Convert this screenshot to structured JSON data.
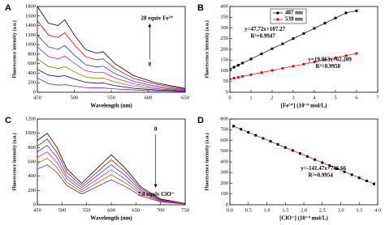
{
  "chart_data": [
    {
      "type": "line",
      "panel_label": "A",
      "x_label": "Wavelength (nm)",
      "y_label": "Fluorescence intensity (a.u.)",
      "x": [
        450,
        465,
        478,
        487,
        500,
        515,
        530,
        539,
        555,
        580,
        610,
        650
      ],
      "series": [
        {
          "color": "#000000",
          "values": [
            1800,
            1450,
            1400,
            1520,
            1200,
            900,
            820,
            850,
            600,
            350,
            200,
            80
          ]
        },
        {
          "color": "#e00000",
          "values": [
            1500,
            1200,
            1150,
            1250,
            1000,
            750,
            680,
            700,
            500,
            290,
            170,
            70
          ]
        },
        {
          "color": "#1f3fd0",
          "values": [
            1200,
            950,
            900,
            980,
            780,
            580,
            530,
            550,
            390,
            230,
            130,
            55
          ]
        },
        {
          "color": "#d020c0",
          "values": [
            950,
            750,
            700,
            760,
            610,
            450,
            410,
            420,
            300,
            180,
            100,
            45
          ]
        },
        {
          "color": "#808000",
          "values": [
            700,
            540,
            500,
            540,
            430,
            320,
            290,
            300,
            215,
            130,
            75,
            35
          ]
        },
        {
          "color": "#000080",
          "values": [
            480,
            360,
            330,
            350,
            280,
            210,
            190,
            195,
            140,
            85,
            50,
            25
          ]
        },
        {
          "color": "#7a1fa0",
          "values": [
            300,
            180,
            150,
            160,
            130,
            100,
            90,
            90,
            70,
            50,
            30,
            10
          ]
        }
      ],
      "xlim": [
        450,
        650
      ],
      "xticks": [
        450,
        500,
        550,
        600,
        650
      ],
      "ylim": [
        0,
        1800
      ],
      "yticks": [
        0,
        200,
        400,
        600,
        800,
        1000,
        1200,
        1400,
        1600,
        1800
      ],
      "annotations": [
        "28 equiv Fe³⁺",
        "0"
      ]
    },
    {
      "type": "scatter",
      "panel_label": "B",
      "x_label": "[Fe³⁺] (10⁻⁴ mol/L)",
      "y_label": "Fluorescence intensity (a.u.)",
      "series": [
        {
          "name": "487 nm",
          "color": "#000000",
          "line_color": "#000000",
          "marker": "square",
          "x": [
            0,
            0.2,
            0.4,
            0.6,
            1,
            1.5,
            2,
            2.5,
            3,
            3.5,
            4,
            4.5,
            5,
            5.5,
            6
          ],
          "values": [
            107,
            117,
            126,
            136,
            155,
            179,
            203,
            226,
            250,
            274,
            298,
            322,
            346,
            370,
            380
          ]
        },
        {
          "name": "539 nm",
          "color": "#e00000",
          "line_color": "#e00000",
          "marker": "circle",
          "x": [
            0,
            0.2,
            0.4,
            0.6,
            1,
            1.5,
            2,
            2.5,
            3,
            3.5,
            4,
            4.5,
            5,
            5.5,
            6
          ],
          "values": [
            62,
            66,
            70,
            74,
            82,
            92,
            102,
            112,
            122,
            131,
            141,
            151,
            161,
            171,
            181
          ]
        }
      ],
      "xlim": [
        0,
        7
      ],
      "xticks": [
        0,
        1,
        2,
        3,
        4,
        5,
        6,
        7
      ],
      "ylim": [
        0,
        400
      ],
      "yticks": [
        0,
        50,
        100,
        150,
        200,
        250,
        300,
        350,
        400
      ],
      "legend": "upper left",
      "annotations": [
        "y=47.72x+107.27",
        "R²=0.9947",
        "y=19.813x+62.209",
        "R²=0.9958"
      ]
    },
    {
      "type": "line",
      "panel_label": "C",
      "x_label": "Wavelength (nm)",
      "y_label": "Fluorescence intensity (a.u.)",
      "x": [
        450,
        470,
        490,
        510,
        540,
        570,
        600,
        630,
        660,
        700,
        750
      ],
      "series": [
        {
          "color": "#000000",
          "values": [
            900,
            1000,
            800,
            500,
            300,
            500,
            700,
            500,
            250,
            80,
            20
          ]
        },
        {
          "color": "#e00000",
          "values": [
            820,
            920,
            730,
            450,
            270,
            450,
            630,
            450,
            225,
            70,
            18
          ]
        },
        {
          "color": "#1f3fd0",
          "values": [
            740,
            830,
            660,
            400,
            240,
            400,
            560,
            400,
            200,
            62,
            16
          ]
        },
        {
          "color": "#d020c0",
          "values": [
            660,
            740,
            590,
            360,
            210,
            350,
            490,
            350,
            175,
            55,
            14
          ]
        },
        {
          "color": "#808000",
          "values": [
            580,
            650,
            520,
            310,
            180,
            300,
            420,
            300,
            150,
            47,
            12
          ]
        },
        {
          "color": "#7a1fa0",
          "values": [
            500,
            560,
            450,
            270,
            150,
            250,
            350,
            250,
            125,
            40,
            10
          ]
        }
      ],
      "xlim": [
        450,
        750
      ],
      "xticks": [
        450,
        500,
        550,
        600,
        650,
        700,
        750
      ],
      "ylim": [
        0,
        1200
      ],
      "yticks": [
        0,
        200,
        400,
        600,
        800,
        1000,
        1200
      ],
      "annotations": [
        "0",
        "7.0 equiv ClO⁻"
      ]
    },
    {
      "type": "scatter",
      "panel_label": "D",
      "x_label": "[ClO⁻] (10⁻⁴ mol/L)",
      "y_label": "Fluorescence intensity (a.u.)",
      "series": [
        {
          "color": "#000000",
          "line_color": "#e00000",
          "marker": "square",
          "x": [
            0.1,
            0.3,
            0.5,
            0.7,
            0.9,
            1.1,
            1.3,
            1.5,
            1.7,
            1.9,
            2.1,
            2.3,
            2.5,
            2.7,
            2.9,
            3.1,
            3.3,
            3.5,
            3.7,
            3.9
          ],
          "values": [
            733,
            704,
            676,
            648,
            619,
            591,
            563,
            534,
            506,
            478,
            450,
            421,
            393,
            365,
            336,
            308,
            280,
            251,
            223,
            195
          ]
        }
      ],
      "xlim": [
        0,
        4
      ],
      "xticks": [
        {
          "value": 0,
          "label": "0.0"
        },
        0.5,
        {
          "value": 1,
          "label": "1.0"
        },
        1.5,
        {
          "value": 2,
          "label": "2.0"
        },
        2.5,
        {
          "value": 3,
          "label": "3.0"
        },
        3.5,
        {
          "value": 4,
          "label": "4.0"
        }
      ],
      "ylim": [
        0,
        800
      ],
      "yticks": [
        0,
        100,
        200,
        300,
        400,
        500,
        600,
        700,
        800
      ],
      "annotations": [
        "y=-141.47x+746.66",
        "R²=0.9954"
      ]
    }
  ]
}
